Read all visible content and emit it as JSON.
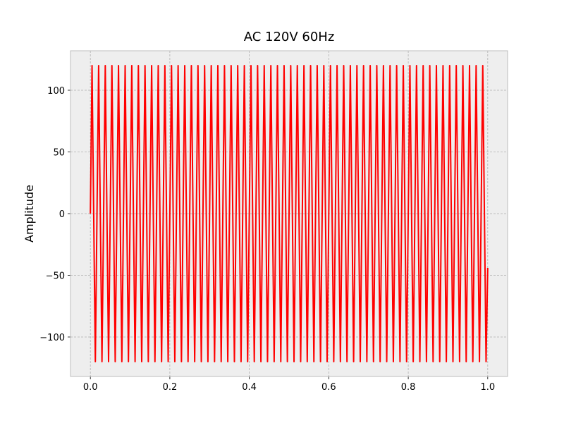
{
  "chart_data": {
    "type": "line",
    "title": "AC 120V 60Hz",
    "y_label": "Amplitude",
    "x": [
      0,
      0.0042,
      0.0125,
      0.0208,
      0.0292,
      0.0375,
      0.0458,
      0.0542,
      0.0625,
      0.0708,
      0.0792,
      0.0875,
      0.0958,
      0.1042,
      0.1125,
      0.1208,
      0.1292,
      0.1375,
      0.1458,
      0.1542,
      0.1625,
      0.1708,
      0.1792,
      0.1875,
      0.1958,
      0.2042,
      0.2125,
      0.2208,
      0.2292,
      0.2375,
      0.2458,
      0.2542,
      0.2625,
      0.2708,
      0.2792,
      0.2875,
      0.2958,
      0.3042,
      0.3125,
      0.3208,
      0.3292,
      0.3375,
      0.3458,
      0.3542,
      0.3625,
      0.3708,
      0.3792,
      0.3875,
      0.3958,
      0.4042,
      0.4125,
      0.4208,
      0.4292,
      0.4375,
      0.4458,
      0.4542,
      0.4625,
      0.4708,
      0.4792,
      0.4875,
      0.4958,
      0.5042,
      0.5125,
      0.5208,
      0.5292,
      0.5375,
      0.5458,
      0.5542,
      0.5625,
      0.5708,
      0.5792,
      0.5875,
      0.5958,
      0.6042,
      0.6125,
      0.6208,
      0.6292,
      0.6375,
      0.6458,
      0.6542,
      0.6625,
      0.6708,
      0.6792,
      0.6875,
      0.6958,
      0.7042,
      0.7125,
      0.7208,
      0.7292,
      0.7375,
      0.7458,
      0.7542,
      0.7625,
      0.7708,
      0.7792,
      0.7875,
      0.7958,
      0.8042,
      0.8125,
      0.8208,
      0.8292,
      0.8375,
      0.8458,
      0.8542,
      0.8625,
      0.8708,
      0.8792,
      0.8875,
      0.8958,
      0.9042,
      0.9125,
      0.9208,
      0.9292,
      0.9375,
      0.9458,
      0.9542,
      0.9625,
      0.9708,
      0.9792,
      0.9875,
      0.9958,
      1.0
    ],
    "values": [
      0,
      120,
      -120,
      120,
      -120,
      120,
      -120,
      120,
      -120,
      120,
      -120,
      120,
      -120,
      120,
      -120,
      120,
      -120,
      120,
      -120,
      120,
      -120,
      120,
      -120,
      120,
      -120,
      120,
      -120,
      120,
      -120,
      120,
      -120,
      120,
      -120,
      120,
      -120,
      120,
      -120,
      120,
      -120,
      120,
      -120,
      120,
      -120,
      120,
      -120,
      120,
      -120,
      120,
      -120,
      120,
      -120,
      120,
      -120,
      120,
      -120,
      120,
      -120,
      120,
      -120,
      120,
      -120,
      120,
      -120,
      120,
      -120,
      120,
      -120,
      120,
      -120,
      120,
      -120,
      120,
      -120,
      120,
      -120,
      120,
      -120,
      120,
      -120,
      120,
      -120,
      120,
      -120,
      120,
      -120,
      120,
      -120,
      120,
      -120,
      120,
      -120,
      120,
      -120,
      120,
      -120,
      120,
      -120,
      120,
      -120,
      120,
      -120,
      120,
      -120,
      120,
      -120,
      120,
      -120,
      120,
      -120,
      120,
      -120,
      120,
      -120,
      120,
      -120,
      120,
      -120,
      120,
      -120,
      120,
      -120,
      -44
    ],
    "color": "#ff0000",
    "xlim": [
      -0.05,
      1.05
    ],
    "xticks": [
      {
        "value": 0,
        "label": "0.0"
      },
      {
        "value": 0.2,
        "label": "0.2"
      },
      {
        "value": 0.4,
        "label": "0.4"
      },
      {
        "value": 0.6,
        "label": "0.6"
      },
      {
        "value": 0.8,
        "label": "0.8"
      },
      {
        "value": 1,
        "label": "1.0"
      }
    ],
    "ylim": [
      -132,
      132
    ],
    "yticks": [
      {
        "value": -100,
        "label": "−100"
      },
      {
        "value": -50,
        "label": "−50"
      },
      0,
      50,
      100
    ],
    "grid": true
  }
}
